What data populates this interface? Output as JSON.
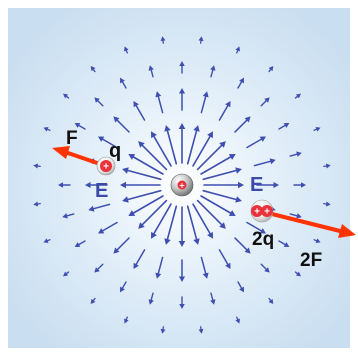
{
  "diagram": {
    "source_charge_sign": "+",
    "probe_q": {
      "sign": "+",
      "label": "q",
      "force_label": "F",
      "field_label": "E"
    },
    "probe_2q": {
      "signs": "++",
      "label": "2q",
      "force_label": "2F",
      "field_label": "E"
    },
    "colors": {
      "background": "#cfe3f3",
      "field_arrow": "#3f4fb0",
      "force_arrow": "#ff3300",
      "charge_red": "#e8323c",
      "label_text": "#111111",
      "field_label_text": "#3a4aa8"
    },
    "icons": [
      "source-charge-icon",
      "field-arrow-icon",
      "force-arrow-icon",
      "probe-charge-icon"
    ]
  }
}
